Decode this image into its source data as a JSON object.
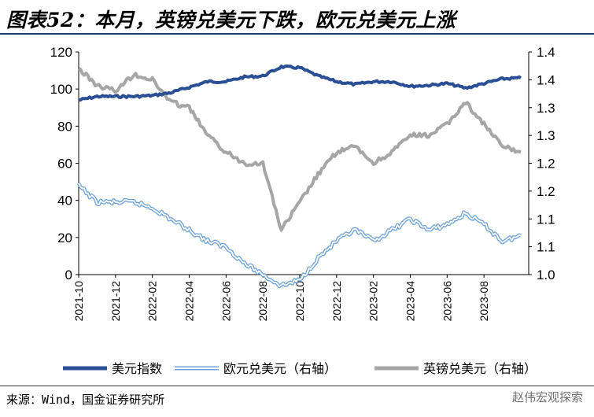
{
  "title": "图表52：本月，英镑兑美元下跌，欧元兑美元上涨",
  "source": "来源：Wind，国金证券研究所",
  "watermark": "赵伟宏观探索",
  "chart_data": {
    "type": "line",
    "title": "",
    "x_tick_labels": [
      "2021-10",
      "2021-12",
      "2022-02",
      "2022-04",
      "2022-06",
      "2022-08",
      "2022-10",
      "2022-12",
      "2023-02",
      "2023-04",
      "2023-06",
      "2023-08"
    ],
    "x_range": [
      "2021-10",
      "2023-10"
    ],
    "y_left": {
      "min": 0,
      "max": 120,
      "ticks": [
        0,
        20,
        40,
        60,
        80,
        100,
        120
      ]
    },
    "y_right": {
      "min": 1.0,
      "max": 1.4,
      "tick_labels": [
        "1.0",
        "1.1",
        "1.1",
        "1.2",
        "1.2",
        "1.3",
        "1.3",
        "1.4",
        "1.4"
      ]
    },
    "grid": false,
    "legend_position": "bottom",
    "series": [
      {
        "name": "美元指数",
        "axis": "left",
        "color": "#2b4f95",
        "style": "thick",
        "points": [
          [
            "2021-10",
            94
          ],
          [
            "2021-11",
            96
          ],
          [
            "2021-12",
            96
          ],
          [
            "2022-01",
            96
          ],
          [
            "2022-02",
            96.5
          ],
          [
            "2022-03",
            98
          ],
          [
            "2022-04",
            101
          ],
          [
            "2022-05",
            104
          ],
          [
            "2022-06",
            104
          ],
          [
            "2022-07",
            106.5
          ],
          [
            "2022-08",
            107
          ],
          [
            "2022-09",
            112
          ],
          [
            "2022-10",
            111.5
          ],
          [
            "2022-11",
            107
          ],
          [
            "2022-12",
            104
          ],
          [
            "2023-01",
            102.5
          ],
          [
            "2023-02",
            104
          ],
          [
            "2023-03",
            104
          ],
          [
            "2023-04",
            101.5
          ],
          [
            "2023-05",
            102
          ],
          [
            "2023-06",
            103
          ],
          [
            "2023-07",
            100.5
          ],
          [
            "2023-08",
            103
          ],
          [
            "2023-09",
            105.5
          ],
          [
            "2023-10",
            106
          ]
        ]
      },
      {
        "name": "欧元兑美元（右轴）",
        "axis": "right",
        "color": "#6fa3d6",
        "style": "double",
        "points": [
          [
            "2021-10",
            1.16
          ],
          [
            "2021-11",
            1.13
          ],
          [
            "2021-12",
            1.13
          ],
          [
            "2022-01",
            1.13
          ],
          [
            "2022-02",
            1.12
          ],
          [
            "2022-03",
            1.1
          ],
          [
            "2022-04",
            1.08
          ],
          [
            "2022-05",
            1.06
          ],
          [
            "2022-06",
            1.05
          ],
          [
            "2022-07",
            1.02
          ],
          [
            "2022-08",
            1.0
          ],
          [
            "2022-09",
            0.98
          ],
          [
            "2022-10",
            0.99
          ],
          [
            "2022-11",
            1.03
          ],
          [
            "2022-12",
            1.06
          ],
          [
            "2023-01",
            1.08
          ],
          [
            "2023-02",
            1.06
          ],
          [
            "2023-03",
            1.08
          ],
          [
            "2023-04",
            1.1
          ],
          [
            "2023-05",
            1.08
          ],
          [
            "2023-06",
            1.09
          ],
          [
            "2023-07",
            1.11
          ],
          [
            "2023-08",
            1.09
          ],
          [
            "2023-09",
            1.06
          ],
          [
            "2023-10",
            1.07
          ]
        ]
      },
      {
        "name": "英镑兑美元（右轴）",
        "axis": "right",
        "color": "#a6a6a6",
        "style": "thick",
        "points": [
          [
            "2021-10",
            1.37
          ],
          [
            "2021-11",
            1.34
          ],
          [
            "2021-12",
            1.33
          ],
          [
            "2022-01",
            1.36
          ],
          [
            "2022-02",
            1.35
          ],
          [
            "2022-03",
            1.31
          ],
          [
            "2022-04",
            1.3
          ],
          [
            "2022-05",
            1.25
          ],
          [
            "2022-06",
            1.22
          ],
          [
            "2022-07",
            1.2
          ],
          [
            "2022-08",
            1.2
          ],
          [
            "2022-09",
            1.08
          ],
          [
            "2022-10",
            1.13
          ],
          [
            "2022-11",
            1.18
          ],
          [
            "2022-12",
            1.22
          ],
          [
            "2023-01",
            1.23
          ],
          [
            "2023-02",
            1.2
          ],
          [
            "2023-03",
            1.22
          ],
          [
            "2023-04",
            1.25
          ],
          [
            "2023-05",
            1.25
          ],
          [
            "2023-06",
            1.27
          ],
          [
            "2023-07",
            1.31
          ],
          [
            "2023-08",
            1.27
          ],
          [
            "2023-09",
            1.23
          ],
          [
            "2023-10",
            1.22
          ]
        ]
      }
    ]
  }
}
